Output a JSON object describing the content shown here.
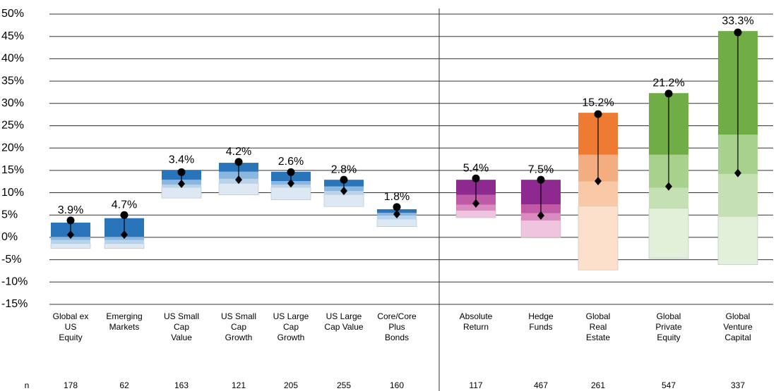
{
  "chart_data": {
    "type": "floating_bar",
    "ylim": [
      -15,
      50
    ],
    "yticks": [
      {
        "value": -15,
        "label": "-15%"
      },
      {
        "value": -10,
        "label": "-10%"
      },
      {
        "value": -5,
        "label": "-5%"
      },
      {
        "value": 0,
        "label": "0%"
      },
      {
        "value": 5,
        "label": "5%"
      },
      {
        "value": 10,
        "label": "10%"
      },
      {
        "value": 15,
        "label": "15%"
      },
      {
        "value": 20,
        "label": "20%"
      },
      {
        "value": 25,
        "label": "25%"
      },
      {
        "value": 30,
        "label": "30%"
      },
      {
        "value": 35,
        "label": "35%"
      },
      {
        "value": 40,
        "label": "40%"
      },
      {
        "value": 45,
        "label": "45%"
      },
      {
        "value": 50,
        "label": "50%"
      }
    ],
    "grid": true,
    "palettes": {
      "blue": [
        "#dce9f5",
        "#b8d3ec",
        "#8ab6df",
        "#2a74ba"
      ],
      "purple": [
        "#f0c4de",
        "#d98bbf",
        "#c05aa6",
        "#8e2a8f"
      ],
      "orange": [
        "#fde0cc",
        "#f9c9a7",
        "#f4ad80",
        "#ef7b33"
      ],
      "green": [
        "#e2efd9",
        "#c5e0b3",
        "#a8d18d",
        "#70ad47"
      ]
    },
    "n_label": "n",
    "categories": [
      {
        "label": [
          "Global ex",
          "US",
          "Equity"
        ],
        "palette": "blue",
        "low": -2.5,
        "segments": [
          1.1,
          0.8,
          0.7,
          3.2
        ],
        "circle": 3.8,
        "diamond": 0.6,
        "spread": 3.9,
        "spread_label": "3.9%",
        "n": 178
      },
      {
        "label": [
          "Emerging",
          "Markets"
        ],
        "palette": "blue",
        "low": -2.5,
        "segments": [
          1.1,
          0.8,
          0.7,
          4.2
        ],
        "circle": 5.0,
        "diamond": 0.6,
        "spread": 4.7,
        "spread_label": "4.7%",
        "n": 62
      },
      {
        "label": [
          "US Small",
          "Cap",
          "Value"
        ],
        "palette": "blue",
        "low": 8.8,
        "segments": [
          2.4,
          0.6,
          1.1,
          2.2
        ],
        "circle": 14.6,
        "diamond": 12.0,
        "spread": 3.4,
        "spread_label": "3.4%",
        "n": 163
      },
      {
        "label": [
          "US Small",
          "Cap",
          "Growth"
        ],
        "palette": "blue",
        "low": 9.5,
        "segments": [
          2.6,
          1.0,
          1.6,
          2.0
        ],
        "circle": 16.9,
        "diamond": 12.9,
        "spread": 4.2,
        "spread_label": "4.2%",
        "n": 121
      },
      {
        "label": [
          "US Large",
          "Cap",
          "Growth"
        ],
        "palette": "blue",
        "low": 8.4,
        "segments": [
          2.8,
          0.6,
          0.8,
          2.1
        ],
        "circle": 14.6,
        "diamond": 12.1,
        "spread": 2.6,
        "spread_label": "2.6%",
        "n": 205
      },
      {
        "label": [
          "US Large",
          "Cap Value"
        ],
        "palette": "blue",
        "low": 6.9,
        "segments": [
          2.7,
          0.8,
          1.0,
          1.5
        ],
        "circle": 12.9,
        "diamond": 10.4,
        "spread": 2.8,
        "spread_label": "2.8%",
        "n": 255
      },
      {
        "label": [
          "Core/Core",
          "Plus",
          "Bonds"
        ],
        "palette": "blue",
        "low": 2.4,
        "segments": [
          1.7,
          0.8,
          0.6,
          0.8
        ],
        "circle": 6.8,
        "diamond": 5.2,
        "spread": 1.8,
        "spread_label": "1.8%",
        "n": 160
      },
      {
        "label": [
          "Absolute",
          "Return"
        ],
        "palette": "purple",
        "low": 4.4,
        "segments": [
          1.6,
          1.3,
          2.2,
          3.4
        ],
        "circle": 13.2,
        "diamond": 7.6,
        "spread": 5.4,
        "spread_label": "5.4%",
        "n": 117
      },
      {
        "label": [
          "Hedge",
          "Funds"
        ],
        "palette": "purple",
        "low": 0,
        "segments": [
          3.8,
          1.6,
          2.0,
          5.5
        ],
        "circle": 12.9,
        "diamond": 4.9,
        "spread": 7.5,
        "spread_label": "7.5%",
        "n": 467
      },
      {
        "label": [
          "Global",
          "Real",
          "Estate"
        ],
        "palette": "orange",
        "low": -7.3,
        "segments": [
          14.3,
          5.5,
          6.0,
          9.4
        ],
        "circle": 27.6,
        "diamond": 12.6,
        "spread": 15.2,
        "spread_label": "15.2%",
        "n": 261
      },
      {
        "label": [
          "Global",
          "Private",
          "Equity"
        ],
        "palette": "green",
        "low": -4.7,
        "segments": [
          11.2,
          4.6,
          7.4,
          13.8
        ],
        "circle": 32.2,
        "diamond": 11.4,
        "spread": 21.2,
        "spread_label": "21.2%",
        "n": 547
      },
      {
        "label": [
          "Global",
          "Venture",
          "Capital"
        ],
        "palette": "green",
        "low": -6.1,
        "segments": [
          10.8,
          9.5,
          8.8,
          23.2
        ],
        "circle": 45.9,
        "diamond": 14.4,
        "spread": 33.3,
        "spread_label": "33.3%",
        "n": 337
      }
    ]
  }
}
